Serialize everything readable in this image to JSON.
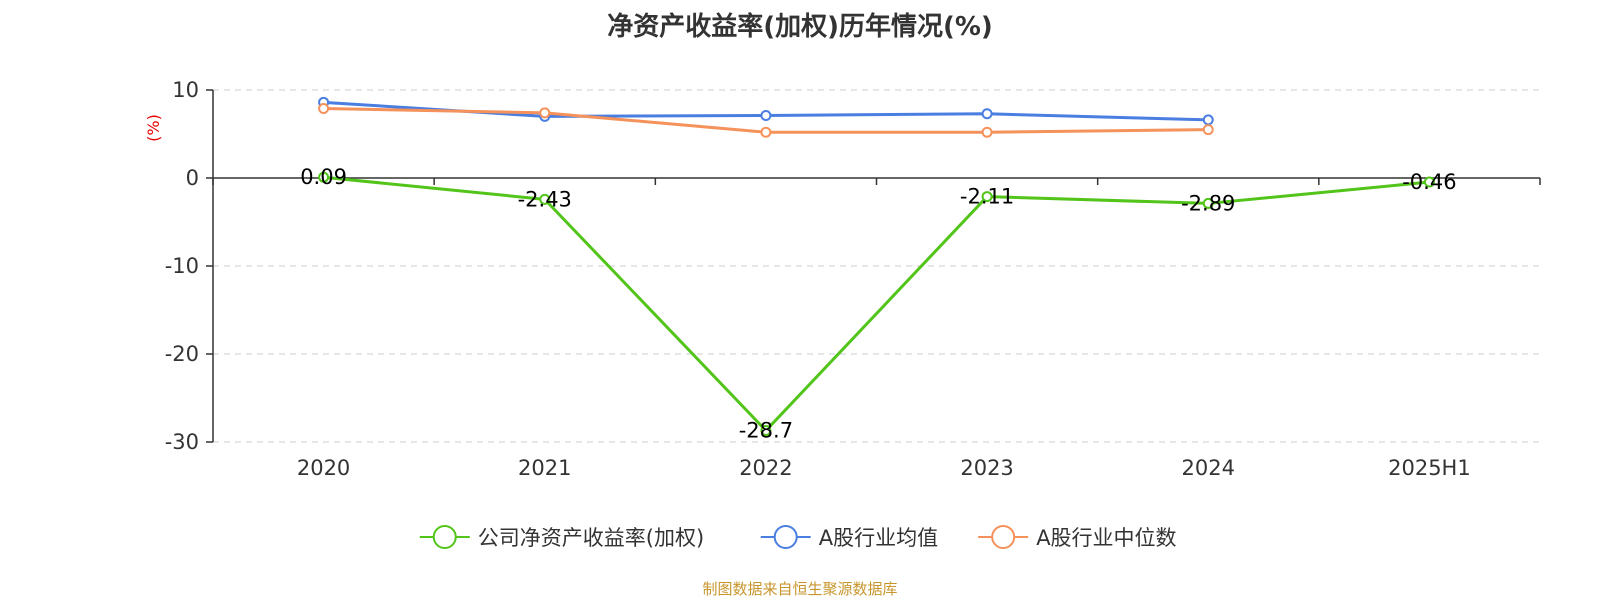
{
  "chart_data": {
    "type": "line",
    "title": "净资产收益率(加权)历年情况(%)",
    "ylabel": "(%)",
    "xlabel": "",
    "categories": [
      "2020",
      "2021",
      "2022",
      "2023",
      "2024",
      "2025H1"
    ],
    "ylim": [
      -30,
      10
    ],
    "yticks": [
      "10",
      "0",
      "-10",
      "-20",
      "-30"
    ],
    "grid": true,
    "legend_position": "bottom",
    "series": [
      {
        "name": "公司净资产收益率(加权)",
        "color": "#52c41a",
        "values": [
          0.09,
          -2.43,
          -28.7,
          -2.11,
          -2.89,
          -0.46
        ],
        "labels": [
          "0.09",
          "-2.43",
          "-28.7",
          "-2.11",
          "-2.89",
          "-0.46"
        ]
      },
      {
        "name": "A股行业均值",
        "color": "#4a7ee0",
        "values": [
          8.6,
          7.0,
          7.1,
          7.3,
          6.6,
          null
        ]
      },
      {
        "name": "A股行业中位数",
        "color": "#f5915a",
        "values": [
          7.9,
          7.4,
          5.2,
          5.2,
          5.5,
          null
        ]
      }
    ]
  },
  "source_text": "制图数据来自恒生聚源数据库",
  "colors": {
    "title": "#333333",
    "axis": "#333333",
    "grid": "#cccccc",
    "ylabel": "#e60000",
    "source": "#c8962d"
  }
}
